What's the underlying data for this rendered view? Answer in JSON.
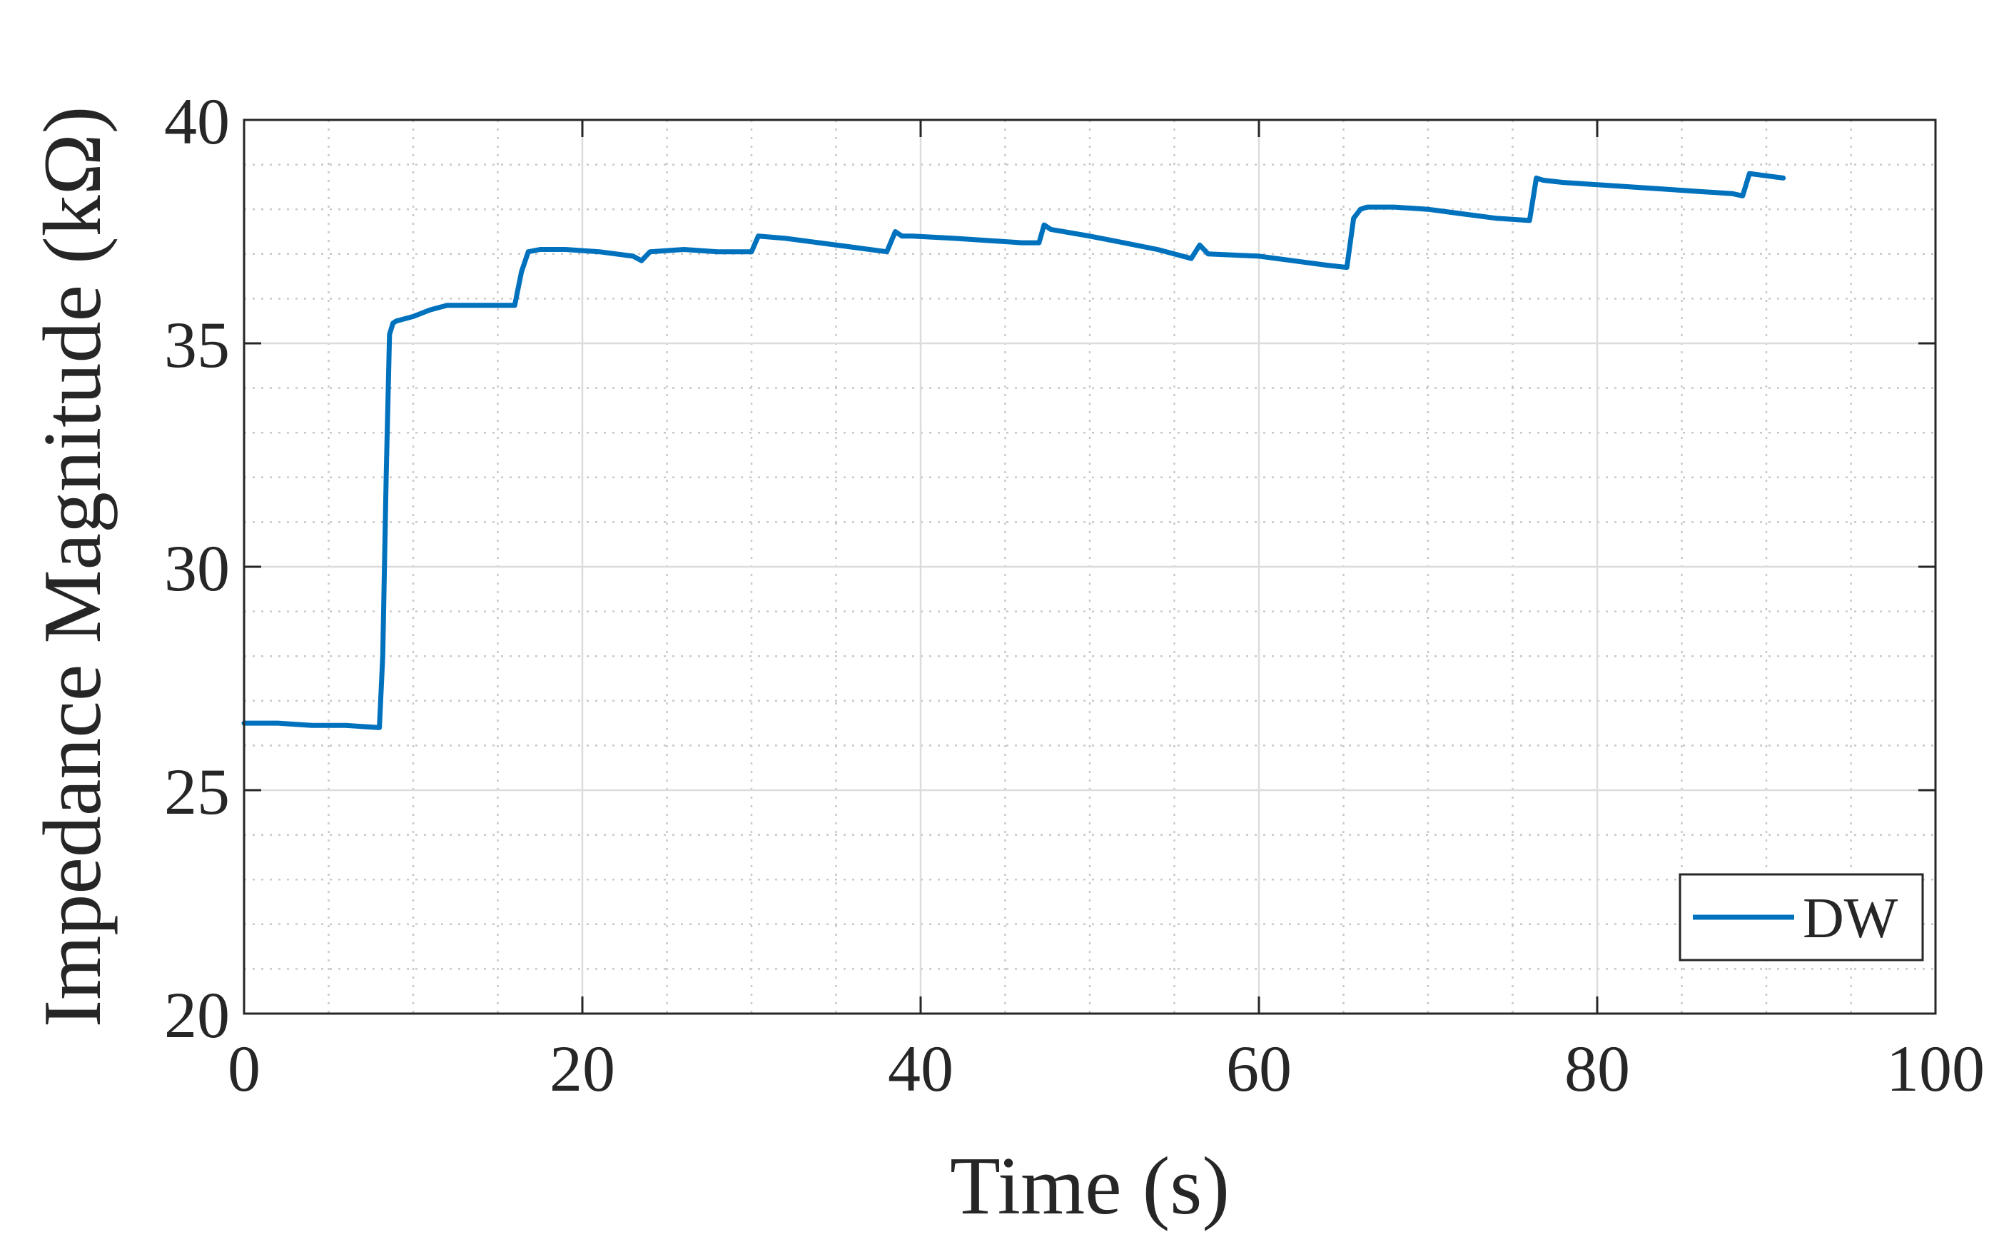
{
  "chart_data": {
    "type": "line",
    "xlabel": "Time (s)",
    "ylabel": "Impedance Magnitude (kΩ)",
    "xlim": [
      0,
      100
    ],
    "ylim": [
      20,
      40
    ],
    "xticks": [
      0,
      20,
      40,
      60,
      80,
      100
    ],
    "yticks": [
      20,
      25,
      30,
      35,
      40
    ],
    "xtick_labels": [
      "0",
      "20",
      "40",
      "60",
      "80",
      "100"
    ],
    "ytick_labels": [
      "20",
      "25",
      "30",
      "35",
      "40"
    ],
    "grid": true,
    "minor_grid": true,
    "legend_position": "bottom-right",
    "series": [
      {
        "name": "DW",
        "color": "#0072BD",
        "x": [
          0,
          2,
          4,
          6,
          8,
          8.2,
          8.4,
          8.6,
          8.8,
          9.0,
          10.0,
          11.0,
          12.0,
          14.0,
          16.0,
          16.4,
          16.8,
          17.5,
          19,
          21,
          23,
          23.5,
          24,
          26,
          28,
          30,
          30.4,
          32,
          34,
          36,
          38,
          38.5,
          38.9,
          39.5,
          42,
          44,
          46,
          47,
          47.3,
          47.7,
          50,
          52,
          54,
          56,
          56.5,
          57,
          60,
          62,
          64,
          65.2,
          65.6,
          66,
          66.4,
          68,
          70,
          72,
          74,
          76,
          76.4,
          76.8,
          78,
          80,
          82,
          84,
          86,
          88,
          88.6,
          89,
          90,
          91
        ],
        "y": [
          26.5,
          26.5,
          26.45,
          26.45,
          26.4,
          28.0,
          32.0,
          35.2,
          35.45,
          35.5,
          35.6,
          35.75,
          35.85,
          35.85,
          35.85,
          36.6,
          37.05,
          37.1,
          37.1,
          37.05,
          36.95,
          36.85,
          37.05,
          37.1,
          37.05,
          37.05,
          37.4,
          37.35,
          37.25,
          37.15,
          37.05,
          37.5,
          37.4,
          37.4,
          37.35,
          37.3,
          37.25,
          37.25,
          37.65,
          37.55,
          37.4,
          37.25,
          37.1,
          36.9,
          37.2,
          37.0,
          36.95,
          36.85,
          36.75,
          36.7,
          37.8,
          38.0,
          38.05,
          38.05,
          38.0,
          37.9,
          37.8,
          37.75,
          38.7,
          38.65,
          38.6,
          38.55,
          38.5,
          38.45,
          38.4,
          38.35,
          38.3,
          38.8,
          38.75,
          38.7
        ]
      }
    ]
  }
}
